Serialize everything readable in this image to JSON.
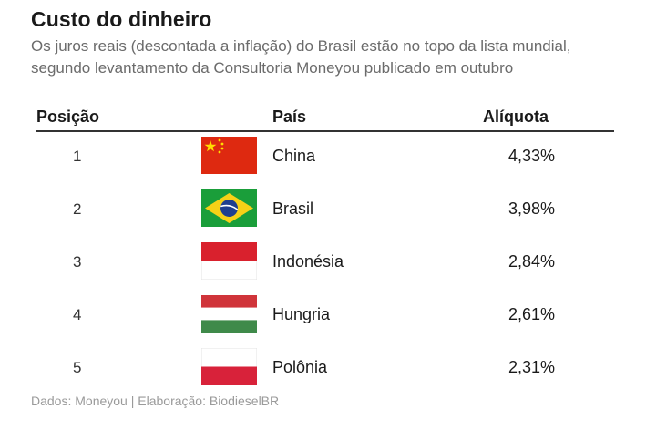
{
  "title": "Custo do dinheiro",
  "subtitle": "Os juros reais (descontada a inflação) do Brasil estão no topo da lista mundial, segundo levantamento da Consultoria Moneyou publicado em outubro",
  "footer": "Dados: Moneyou | Elaboração: BiodieselBR",
  "chart_data": {
    "type": "table",
    "columns": [
      "Posição",
      "País",
      "Alíquota"
    ],
    "rows": [
      {
        "rank": "1",
        "country": "China",
        "rate": "4,33%",
        "value": 4.33,
        "flag": "china-flag-icon"
      },
      {
        "rank": "2",
        "country": "Brasil",
        "rate": "3,98%",
        "value": 3.98,
        "flag": "brazil-flag-icon"
      },
      {
        "rank": "3",
        "country": "Indonésia",
        "rate": "2,84%",
        "value": 2.84,
        "flag": "indonesia-flag-icon"
      },
      {
        "rank": "4",
        "country": "Hungria",
        "rate": "2,61%",
        "value": 2.61,
        "flag": "hungary-flag-icon"
      },
      {
        "rank": "5",
        "country": "Polônia",
        "rate": "2,31%",
        "value": 2.31,
        "flag": "poland-flag-icon"
      }
    ]
  },
  "colors": {
    "china_red": "#de2910",
    "china_yellow": "#ffde00",
    "brazil_green": "#1a9e3a",
    "brazil_yellow": "#f7d117",
    "brazil_blue": "#1f3f8f",
    "indonesia_red": "#d9212d",
    "white": "#ffffff",
    "hungary_red": "#d0343a",
    "hungary_green": "#3f8a4a",
    "poland_red": "#d8223a"
  }
}
